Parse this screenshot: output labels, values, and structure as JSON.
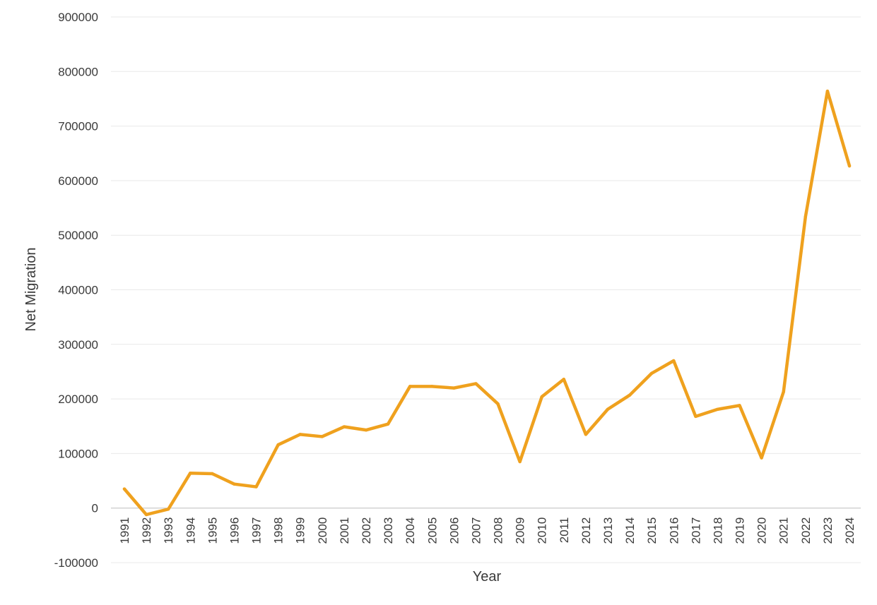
{
  "chart_data": {
    "type": "line",
    "title": "",
    "xlabel": "Year",
    "ylabel": "Net Migration",
    "ylim": [
      -100000,
      900000
    ],
    "y_ticks": [
      -100000,
      0,
      100000,
      200000,
      300000,
      400000,
      500000,
      600000,
      700000,
      800000,
      900000
    ],
    "grid": true,
    "legend": "none",
    "line_color": "#EFA11E",
    "categories": [
      "1991",
      "1992",
      "1993",
      "1994",
      "1995",
      "1996",
      "1997",
      "1998",
      "1999",
      "2000",
      "2001",
      "2002",
      "2003",
      "2004",
      "2005",
      "2006",
      "2007",
      "2008",
      "2009",
      "2010",
      "2011",
      "2012",
      "2013",
      "2014",
      "2015",
      "2016",
      "2017",
      "2018",
      "2019",
      "2020",
      "2021",
      "2022",
      "2023",
      "2024"
    ],
    "series": [
      {
        "values": [
          35000,
          -12000,
          -2000,
          64000,
          63000,
          44000,
          39000,
          116000,
          135000,
          131000,
          149000,
          143000,
          154000,
          223000,
          223000,
          220000,
          228000,
          191000,
          85000,
          204000,
          236000,
          135000,
          181000,
          207000,
          247000,
          270000,
          168000,
          181000,
          188000,
          92000,
          213000,
          534000,
          764000,
          627000
        ]
      }
    ]
  }
}
